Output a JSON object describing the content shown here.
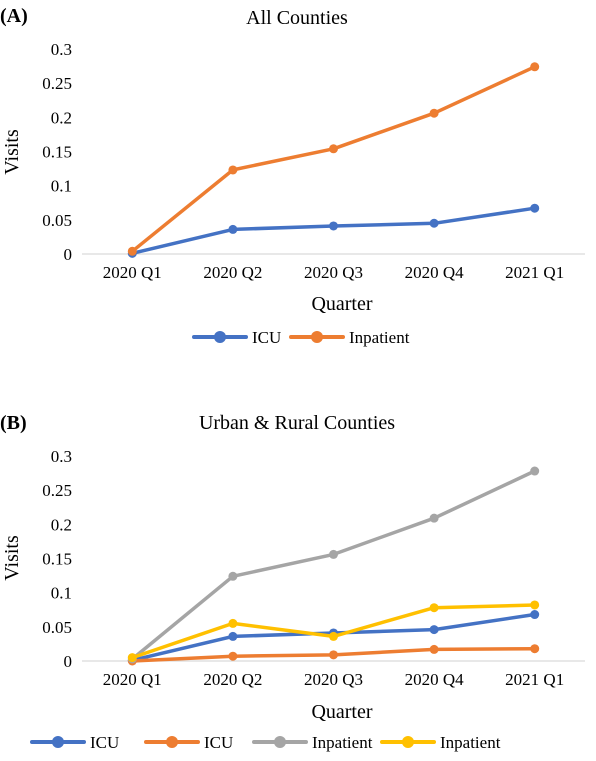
{
  "colors": {
    "blue": "#4472C4",
    "orange": "#ED7D31",
    "gray": "#A5A5A5",
    "yellow": "#FFC000",
    "axis": "#D9D9D9"
  },
  "chart_data": [
    {
      "type": "line",
      "panel_label": "(A)",
      "title": "All Counties",
      "xlabel": "Quarter",
      "ylabel": "Visits",
      "categories": [
        "2020 Q1",
        "2020 Q2",
        "2020 Q3",
        "2020 Q4",
        "2021 Q1"
      ],
      "ylim": [
        0,
        0.3
      ],
      "yticks": [
        "0",
        "0.05",
        "0.1",
        "0.15",
        "0.2",
        "0.25",
        "0.3"
      ],
      "grid": false,
      "legend": "bottom",
      "series": [
        {
          "name": "ICU",
          "color": "#4472C4",
          "values": [
            0.001,
            0.036,
            0.041,
            0.045,
            0.067
          ]
        },
        {
          "name": "Inpatient",
          "color": "#ED7D31",
          "values": [
            0.004,
            0.123,
            0.154,
            0.206,
            0.274
          ]
        }
      ]
    },
    {
      "type": "line",
      "panel_label": "(B)",
      "title": "Urban & Rural Counties",
      "xlabel": "Quarter",
      "ylabel": "Visits",
      "categories": [
        "2020 Q1",
        "2020 Q2",
        "2020 Q3",
        "2020 Q4",
        "2021 Q1"
      ],
      "ylim": [
        0,
        0.3
      ],
      "yticks": [
        "0",
        "0.05",
        "0.1",
        "0.15",
        "0.2",
        "0.25",
        "0.3"
      ],
      "grid": false,
      "legend": "bottom",
      "series": [
        {
          "name": "ICU",
          "color": "#4472C4",
          "values": [
            0.001,
            0.036,
            0.041,
            0.046,
            0.068
          ]
        },
        {
          "name": "ICU",
          "color": "#ED7D31",
          "values": [
            0.0,
            0.007,
            0.009,
            0.017,
            0.018
          ]
        },
        {
          "name": "Inpatient",
          "color": "#A5A5A5",
          "values": [
            0.003,
            0.124,
            0.156,
            0.209,
            0.278
          ]
        },
        {
          "name": "Inpatient",
          "color": "#FFC000",
          "values": [
            0.005,
            0.055,
            0.036,
            0.078,
            0.082
          ]
        }
      ]
    }
  ]
}
